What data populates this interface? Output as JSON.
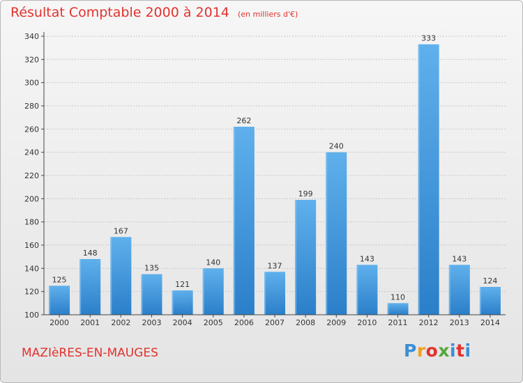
{
  "chart_data": {
    "type": "bar",
    "title": "Résultat Comptable 2000 à 2014",
    "subtitle": "(en milliers d'€)",
    "categories": [
      "2000",
      "2001",
      "2002",
      "2003",
      "2004",
      "2005",
      "2006",
      "2007",
      "2008",
      "2009",
      "2010",
      "2011",
      "2012",
      "2013",
      "2014"
    ],
    "values": [
      125,
      148,
      167,
      135,
      121,
      140,
      262,
      137,
      199,
      240,
      143,
      110,
      333,
      143,
      124
    ],
    "ylim": [
      100,
      340
    ],
    "yticks": [
      100,
      120,
      140,
      160,
      180,
      200,
      220,
      240,
      260,
      280,
      300,
      320,
      340
    ],
    "grid": true,
    "colors": {
      "bar_light": "#5fb0ec",
      "bar_dark": "#2b7fc9",
      "grid": "#c8c8c8",
      "axis": "#444444"
    }
  },
  "footer": {
    "town": "MAZIèRES-EN-MAUGES",
    "logo_text": "Proxiti",
    "logo_colors": [
      "#3a8fd6",
      "#f0a020",
      "#e2322e",
      "#55a83a",
      "#3a8fd6",
      "#e2322e",
      "#3a8fd6"
    ]
  },
  "colors": {
    "accent": "#e2322e"
  }
}
